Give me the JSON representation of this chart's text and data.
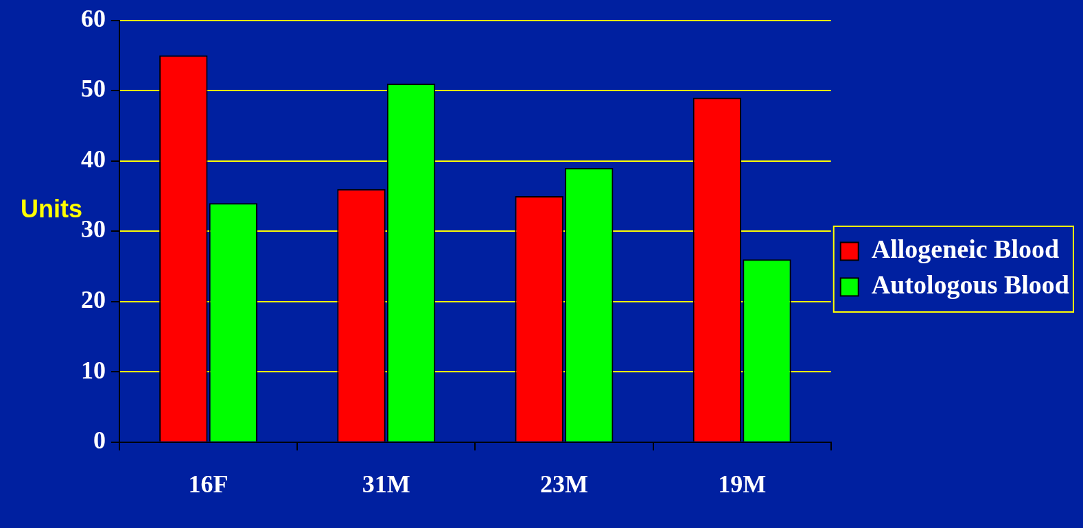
{
  "chart_data": {
    "type": "bar",
    "ylabel": "Units",
    "categories": [
      "16F",
      "31M",
      "23M",
      "19M"
    ],
    "series": [
      {
        "name": "Allogeneic Blood",
        "color": "#ff0000",
        "values": [
          55,
          36,
          35,
          49
        ]
      },
      {
        "name": "Autologous Blood",
        "color": "#00ff00",
        "values": [
          34,
          51,
          39,
          26
        ]
      }
    ],
    "ylim": [
      0,
      60
    ],
    "yticks": [
      0,
      10,
      20,
      30,
      40,
      50,
      60
    ],
    "grid": "y",
    "legend": "right"
  }
}
